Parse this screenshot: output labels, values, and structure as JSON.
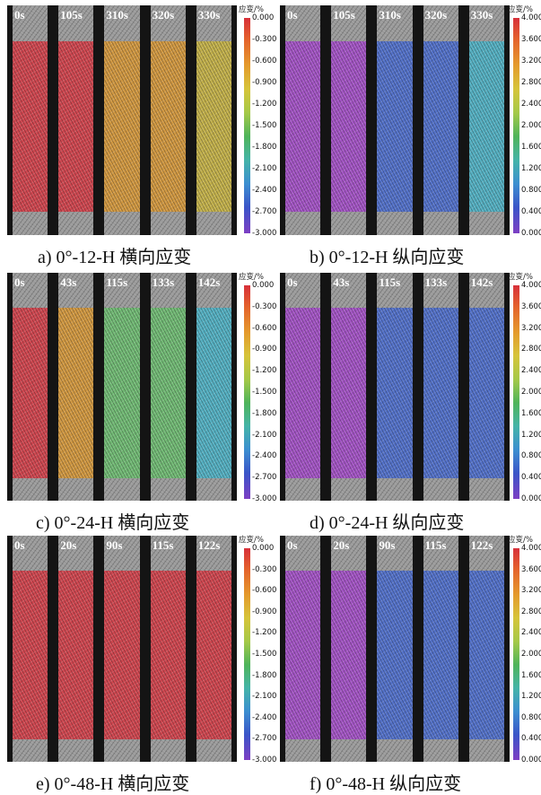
{
  "colorbar_title": "应变/%",
  "scales": {
    "transverse": [
      "0.000",
      "-0.300",
      "-0.600",
      "-0.900",
      "-1.200",
      "-1.500",
      "-1.800",
      "-2.100",
      "-2.400",
      "-2.700",
      "-3.000"
    ],
    "longitudinal": [
      "4.000",
      "3.600",
      "3.200",
      "2.800",
      "2.400",
      "2.000",
      "1.600",
      "1.200",
      "0.800",
      "0.400",
      "0.000"
    ]
  },
  "colors": {
    "red": "#d6404a",
    "orange": "#d99a3a",
    "yellow": "#c9b545",
    "green": "#6fbf73",
    "cyan": "#4fb4c8",
    "blue": "#4e6fd0",
    "purple": "#a64fcb"
  },
  "panels": [
    {
      "id": "a",
      "caption": "a)  0°-12-H 横向应变",
      "scale": "transverse",
      "times": [
        "0s",
        "105s",
        "310s",
        "320s",
        "330s"
      ],
      "fields": [
        "red",
        "red",
        "orange",
        "orange",
        "yellow"
      ]
    },
    {
      "id": "b",
      "caption": "b)  0°-12-H 纵向应变",
      "scale": "longitudinal",
      "times": [
        "0s",
        "105s",
        "310s",
        "320s",
        "330s"
      ],
      "fields": [
        "purple",
        "purple",
        "blue",
        "blue",
        "cyan"
      ]
    },
    {
      "id": "c",
      "caption": "c)  0°-24-H 横向应变",
      "scale": "transverse",
      "times": [
        "0s",
        "43s",
        "115s",
        "133s",
        "142s"
      ],
      "fields": [
        "red",
        "orange",
        "green",
        "green",
        "cyan"
      ]
    },
    {
      "id": "d",
      "caption": "d)  0°-24-H 纵向应变",
      "scale": "longitudinal",
      "times": [
        "0s",
        "43s",
        "115s",
        "133s",
        "142s"
      ],
      "fields": [
        "purple",
        "purple",
        "blue",
        "blue",
        "blue"
      ]
    },
    {
      "id": "e",
      "caption": "e)  0°-48-H 横向应变",
      "scale": "transverse",
      "times": [
        "0s",
        "20s",
        "90s",
        "115s",
        "122s"
      ],
      "fields": [
        "red",
        "red",
        "red",
        "red",
        "red"
      ]
    },
    {
      "id": "f",
      "caption": "f)  0°-48-H 纵向应变",
      "scale": "longitudinal",
      "times": [
        "0s",
        "20s",
        "90s",
        "115s",
        "122s"
      ],
      "fields": [
        "purple",
        "purple",
        "blue",
        "blue",
        "blue"
      ]
    }
  ]
}
